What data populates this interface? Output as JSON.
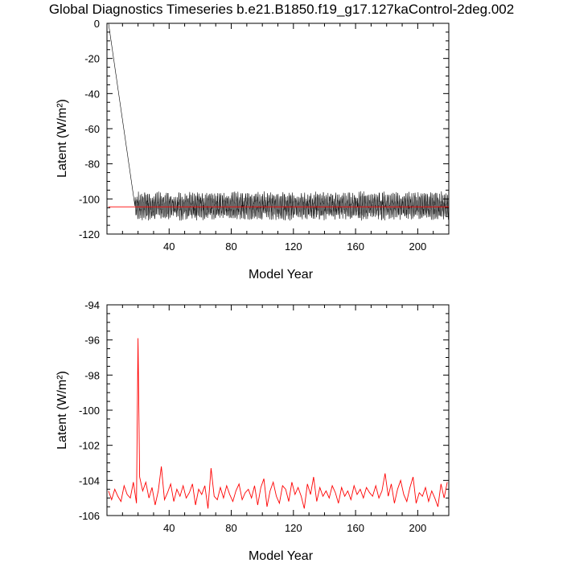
{
  "title": "Global Diagnostics Timeseries b.e21.B1850.f19_g17.127kaControl-2deg.002",
  "colors": {
    "monthly": "#000000",
    "annual": "#ff0000",
    "axes": "#000000"
  },
  "chart_data": [
    {
      "type": "line",
      "xlabel": "Model Year",
      "ylabel": "Latent (W/m²)",
      "xlim": [
        0,
        220
      ],
      "ylim": [
        -120,
        0
      ],
      "xticks": [
        40,
        80,
        120,
        160,
        200
      ],
      "yticks": [
        0,
        -20,
        -40,
        -60,
        -80,
        -100,
        -120
      ],
      "series": [
        {
          "name": "",
          "color": "#000000",
          "description_of_shape": "monthly values: starts at 0 in year 1, drops linearly to about -104 by year 18, then oscillates between about -112 and -96 around -104 through year 220",
          "x": [
            1,
            18,
            220
          ],
          "values": [
            0,
            -104,
            -104
          ],
          "noise_amplitude": 7
        },
        {
          "name": "",
          "color": "#ff0000",
          "x": [
            1,
            18,
            220
          ],
          "values": [
            -104.5,
            -104.5,
            -104.5
          ]
        }
      ]
    },
    {
      "type": "line",
      "xlabel": "Model Year",
      "ylabel": "Latent (W/m²)",
      "xlim": [
        0,
        220
      ],
      "ylim": [
        -106,
        -94
      ],
      "xticks": [
        40,
        80,
        120,
        160,
        200
      ],
      "yticks": [
        -94,
        -96,
        -98,
        -100,
        -102,
        -104,
        -106
      ],
      "series": [
        {
          "name": "",
          "color": "#ff0000",
          "x": [
            1,
            3,
            5,
            7,
            9,
            11,
            13,
            15,
            17,
            19,
            20,
            21,
            23,
            25,
            27,
            29,
            31,
            33,
            35,
            37,
            39,
            41,
            43,
            45,
            47,
            49,
            51,
            53,
            55,
            57,
            59,
            61,
            63,
            65,
            67,
            69,
            71,
            73,
            75,
            77,
            79,
            81,
            83,
            85,
            87,
            89,
            91,
            93,
            95,
            97,
            99,
            101,
            103,
            105,
            107,
            109,
            111,
            113,
            115,
            117,
            119,
            121,
            123,
            125,
            127,
            129,
            131,
            133,
            135,
            137,
            139,
            141,
            143,
            145,
            147,
            149,
            151,
            153,
            155,
            157,
            159,
            161,
            163,
            165,
            167,
            169,
            171,
            173,
            175,
            177,
            179,
            181,
            183,
            185,
            187,
            189,
            191,
            193,
            195,
            197,
            199,
            201,
            203,
            205,
            207,
            209,
            211,
            213,
            215,
            217,
            219
          ],
          "values": [
            -104.6,
            -105.1,
            -104.5,
            -104.9,
            -105.2,
            -104.3,
            -104.8,
            -105.0,
            -104.1,
            -105.3,
            -95.9,
            -103.8,
            -104.6,
            -104.1,
            -105.0,
            -104.4,
            -105.4,
            -104.6,
            -103.2,
            -105.1,
            -104.7,
            -104.2,
            -105.2,
            -104.5,
            -104.9,
            -104.3,
            -105.0,
            -104.7,
            -104.2,
            -105.4,
            -104.5,
            -104.8,
            -104.3,
            -105.6,
            -103.3,
            -104.9,
            -105.1,
            -104.4,
            -105.0,
            -104.3,
            -104.8,
            -105.2,
            -104.6,
            -104.2,
            -105.1,
            -104.7,
            -104.5,
            -105.0,
            -104.3,
            -105.4,
            -104.4,
            -103.9,
            -105.5,
            -104.6,
            -104.1,
            -104.9,
            -105.3,
            -104.3,
            -104.5,
            -105.2,
            -104.1,
            -104.8,
            -104.4,
            -104.9,
            -105.6,
            -104.2,
            -104.8,
            -103.8,
            -105.2,
            -104.4,
            -104.9,
            -104.6,
            -105.0,
            -104.3,
            -104.7,
            -105.3,
            -104.4,
            -104.9,
            -104.6,
            -105.1,
            -104.3,
            -104.8,
            -104.5,
            -105.0,
            -104.4,
            -104.7,
            -104.9,
            -104.3,
            -105.0,
            -104.6,
            -103.6,
            -104.9,
            -104.2,
            -105.3,
            -104.5,
            -104.0,
            -104.8,
            -105.2,
            -104.4,
            -103.8,
            -105.3,
            -104.7,
            -104.9,
            -104.4,
            -105.2,
            -104.6,
            -105.0,
            -105.5,
            -104.2,
            -105.0,
            -104.1
          ]
        }
      ]
    }
  ]
}
